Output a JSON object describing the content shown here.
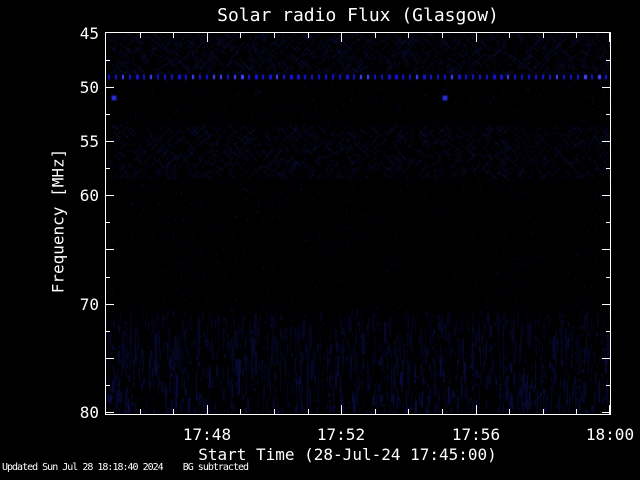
{
  "title": "Solar radio Flux (Glasgow)",
  "status_line": "Updated Sun Jul 28 18:18:40 2024    BG subtracted",
  "chart_data": {
    "type": "heatmap",
    "title": "Solar radio Flux (Glasgow)",
    "xlabel": "Start Time (28-Jul-24 17:45:00)",
    "ylabel": "Frequency [MHz]",
    "x_start": "17:45:00",
    "x_end": "18:00:00",
    "x_total_minutes": 15,
    "x_minor_tick_minutes": 1,
    "x_major_ticks": [
      {
        "label": "17:48",
        "minute": 3
      },
      {
        "label": "17:52",
        "minute": 7
      },
      {
        "label": "17:56",
        "minute": 11
      },
      {
        "label": "18:00",
        "minute": 15
      }
    ],
    "y_min_mhz": 45,
    "y_max_mhz": 80.2,
    "y_inverted": true,
    "y_tick_step_mhz": 2.5,
    "y_major_step_mhz": 5,
    "y_labeled_ticks": [
      {
        "label": "45",
        "mhz": 45
      },
      {
        "label": "50",
        "mhz": 50
      },
      {
        "label": "55",
        "mhz": 55
      },
      {
        "label": "60",
        "mhz": 60
      },
      {
        "label": "70",
        "mhz": 70
      },
      {
        "label": "80",
        "mhz": 80
      }
    ],
    "colors": {
      "background": "#000000",
      "axis": "#ffffff",
      "text": "#ffffff",
      "rfi_blue": "#1414dc",
      "rfi_blue_bright": "#4646ff",
      "noise_blue": "#00003c",
      "burst_blue": "#2d2dd7"
    },
    "features": [
      {
        "name": "rfi-carrier-dotted-line",
        "type": "horizontal-dotted-line",
        "mhz": 49.1,
        "from": "17:45:00",
        "to": "18:00:00",
        "dot_spacing_px": 7
      },
      {
        "name": "point-signal",
        "type": "dot",
        "mhz": 50.8,
        "time": "17:45:11"
      },
      {
        "name": "point-signal",
        "type": "dot",
        "mhz": 50.8,
        "time": "17:55:02"
      },
      {
        "name": "noise-band-diagonal-top",
        "type": "texture",
        "mhz_range": [
          45,
          49.0
        ],
        "style": "faint diagonal streaks"
      },
      {
        "name": "noise-band-diagonal-mid",
        "type": "texture",
        "mhz_range": [
          53.5,
          58.5
        ],
        "style": "faint diagonal streaks"
      },
      {
        "name": "noise-band-vertical-bottom",
        "type": "texture",
        "mhz_range": [
          70.5,
          80.2
        ],
        "style": "faint vertical striations"
      }
    ]
  }
}
